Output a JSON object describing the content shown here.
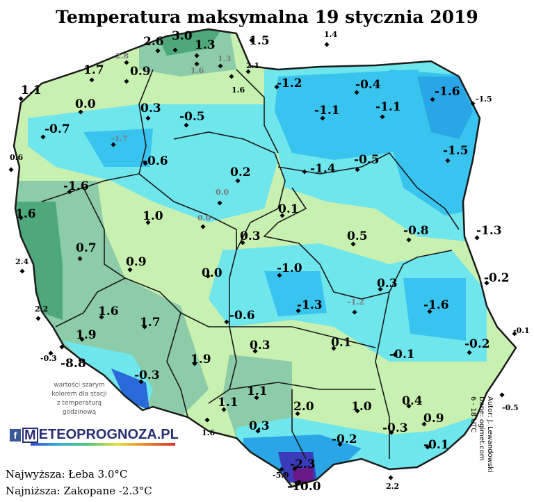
{
  "title": "Temperatura maksymalna 19 stycznia 2019",
  "note": [
    "wartości szarym",
    "kolorem dla stacji",
    "z temperaturą",
    "godzinową"
  ],
  "logo": {
    "fb": "f",
    "m": "M",
    "text": "ETEOPROGNOZA.PL"
  },
  "highest": "Najwyższa: Łeba 3.0°C",
  "lowest": "Najniższa: Zakopane -2.3°C",
  "author": [
    "Autor: J. Lewandowski",
    "Dane: ogimet.com",
    "6 - 18 UTC"
  ],
  "stations": [
    {
      "v": "3.0",
      "s": "lg"
    },
    {
      "v": "2.6",
      "s": "lg"
    },
    {
      "v": "1.3",
      "s": "lg"
    },
    {
      "v": "1.5",
      "s": "lg"
    },
    {
      "v": "1.4",
      "s": "sm"
    },
    {
      "v": "2.8",
      "s": "gray"
    },
    {
      "v": "1.3",
      "s": "gray"
    },
    {
      "v": "1.6",
      "s": "gray"
    },
    {
      "v": "2.1",
      "s": "sm"
    },
    {
      "v": "1.7",
      "s": "lg"
    },
    {
      "v": "0.9",
      "s": "lg"
    },
    {
      "v": "1.6",
      "s": "sm"
    },
    {
      "v": "-1.2",
      "s": "lg"
    },
    {
      "v": "-0.4",
      "s": "lg"
    },
    {
      "v": "1.1",
      "s": "lg"
    },
    {
      "v": "-1.6",
      "s": "lg"
    },
    {
      "v": "-1.5",
      "s": "sm"
    },
    {
      "v": "0.0",
      "s": "lg"
    },
    {
      "v": "-1.1",
      "s": "lg"
    },
    {
      "v": "-1.1",
      "s": "lg"
    },
    {
      "v": "0.3",
      "s": "lg"
    },
    {
      "v": "-0.5",
      "s": "lg"
    },
    {
      "v": "-0.7",
      "s": "lg"
    },
    {
      "v": "-1.7",
      "s": "gray"
    },
    {
      "v": "-1.5",
      "s": "lg"
    },
    {
      "v": "0.6",
      "s": "sm"
    },
    {
      "v": "-0.6",
      "s": "lg"
    },
    {
      "v": "-1.4",
      "s": "lg"
    },
    {
      "v": "-0.5",
      "s": "lg"
    },
    {
      "v": "0.2",
      "s": "lg"
    },
    {
      "v": "-1.6",
      "s": "lg"
    },
    {
      "v": "0.0",
      "s": "gray"
    },
    {
      "v": "1.6",
      "s": "lg"
    },
    {
      "v": "0.1",
      "s": "lg"
    },
    {
      "v": "1.0",
      "s": "lg"
    },
    {
      "v": "0.0",
      "s": "gray"
    },
    {
      "v": "0.3",
      "s": "lg"
    },
    {
      "v": "0.5",
      "s": "lg"
    },
    {
      "v": "-0.8",
      "s": "lg"
    },
    {
      "v": "-1.3",
      "s": "lg"
    },
    {
      "v": "0.7",
      "s": "lg"
    },
    {
      "v": "2.4",
      "s": "sm"
    },
    {
      "v": "0.9",
      "s": "lg"
    },
    {
      "v": "0.0",
      "s": "lg"
    },
    {
      "v": "-1.0",
      "s": "lg"
    },
    {
      "v": "-0.2",
      "s": "lg"
    },
    {
      "v": "0.3",
      "s": "lg"
    },
    {
      "v": "-1.3",
      "s": "lg"
    },
    {
      "v": "-1.2",
      "s": "gray"
    },
    {
      "v": "-1.6",
      "s": "lg"
    },
    {
      "v": "2.2",
      "s": "sm"
    },
    {
      "v": "1.6",
      "s": "lg"
    },
    {
      "v": "1.7",
      "s": "lg"
    },
    {
      "v": "-0.6",
      "s": "lg"
    },
    {
      "v": "-0.1",
      "s": "sm"
    },
    {
      "v": "1.9",
      "s": "lg"
    },
    {
      "v": "0.3",
      "s": "lg"
    },
    {
      "v": "0.1",
      "s": "lg"
    },
    {
      "v": "-0.2",
      "s": "lg"
    },
    {
      "v": "-0.3",
      "s": "sm"
    },
    {
      "v": "-8.8",
      "s": "lg"
    },
    {
      "v": "1.9",
      "s": "lg"
    },
    {
      "v": "-0.1",
      "s": "lg"
    },
    {
      "v": "-0.3",
      "s": "lg"
    },
    {
      "v": "1.1",
      "s": "lg"
    },
    {
      "v": "1.1",
      "s": "lg"
    },
    {
      "v": "2.0",
      "s": "lg"
    },
    {
      "v": "1.0",
      "s": "lg"
    },
    {
      "v": "0.4",
      "s": "lg"
    },
    {
      "v": "-0.5",
      "s": "sm"
    },
    {
      "v": "1.6",
      "s": "sm"
    },
    {
      "v": "0.3",
      "s": "lg"
    },
    {
      "v": "-0.3",
      "s": "lg"
    },
    {
      "v": "0.9",
      "s": "lg"
    },
    {
      "v": "-0.2",
      "s": "lg"
    },
    {
      "v": "-0.1",
      "s": "lg"
    },
    {
      "v": "-5.9",
      "s": "sm"
    },
    {
      "v": "-2.3",
      "s": "lg"
    },
    {
      "v": "-10.0",
      "s": "lg"
    },
    {
      "v": "2.2",
      "s": "sm"
    }
  ]
}
